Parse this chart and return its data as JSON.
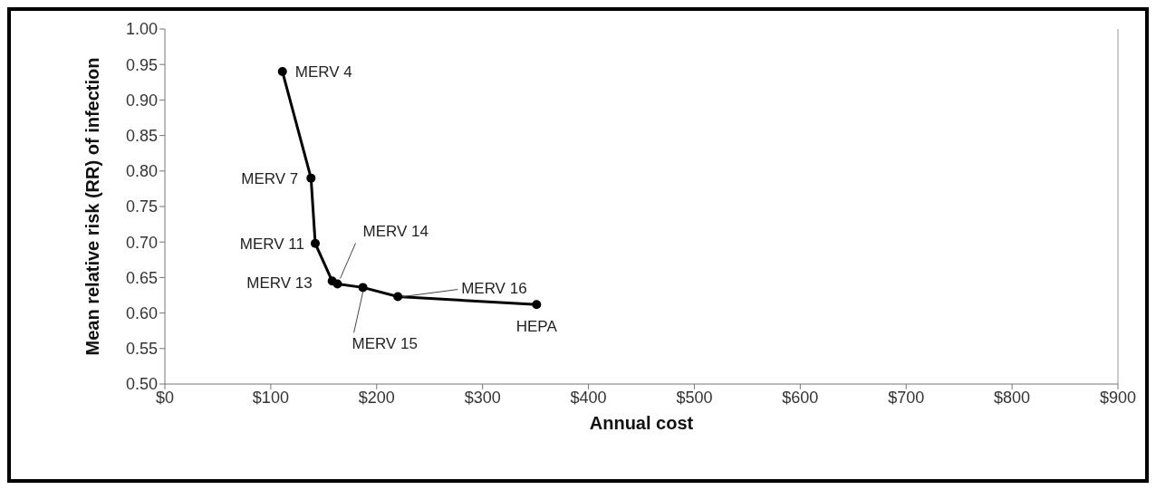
{
  "chart_data": {
    "type": "line",
    "xlabel": "Annual cost",
    "ylabel": "Mean relative risk (RR) of infection",
    "x": [
      111,
      138,
      142,
      158,
      163,
      187,
      220,
      351
    ],
    "series": [
      {
        "color": "#000000",
        "values": [
          0.94,
          0.79,
          0.698,
          0.645,
          0.641,
          0.636,
          0.623,
          0.612
        ]
      }
    ],
    "marker": "circle",
    "line_style": "solid",
    "grid": false,
    "legend": false,
    "xlim": [
      0,
      900
    ],
    "xticks": [
      {
        "value": 0,
        "label": "$0"
      },
      {
        "value": 100,
        "label": "$100"
      },
      {
        "value": 200,
        "label": "$200"
      },
      {
        "value": 300,
        "label": "$300"
      },
      {
        "value": 400,
        "label": "$400"
      },
      {
        "value": 500,
        "label": "$500"
      },
      {
        "value": 600,
        "label": "$600"
      },
      {
        "value": 700,
        "label": "$700"
      },
      {
        "value": 800,
        "label": "$800"
      },
      {
        "value": 900,
        "label": "$900"
      }
    ],
    "ylim": [
      0.5,
      1
    ],
    "yticks": [
      {
        "value": 0.5,
        "label": "0.50"
      },
      {
        "value": 0.55,
        "label": "0.55"
      },
      {
        "value": 0.6,
        "label": "0.60"
      },
      {
        "value": 0.65,
        "label": "0.65"
      },
      {
        "value": 0.7,
        "label": "0.70"
      },
      {
        "value": 0.75,
        "label": "0.75"
      },
      {
        "value": 0.8,
        "label": "0.80"
      },
      {
        "value": 0.85,
        "label": "0.85"
      },
      {
        "value": 0.9,
        "label": "0.90"
      },
      {
        "value": 0.95,
        "label": "0.95"
      },
      {
        "value": 1,
        "label": "1.00"
      }
    ],
    "annotations": [
      {
        "text": "MERV 4",
        "x": 111,
        "y": 0.94
      },
      {
        "text": "MERV 7",
        "x": 138,
        "y": 0.79
      },
      {
        "text": "MERV 11",
        "x": 142,
        "y": 0.698
      },
      {
        "text": "MERV 13",
        "x": 158,
        "y": 0.645
      },
      {
        "text": "MERV 14",
        "x": 163,
        "y": 0.641
      },
      {
        "text": "MERV 15",
        "x": 187,
        "y": 0.636
      },
      {
        "text": "MERV 16",
        "x": 220,
        "y": 0.623
      },
      {
        "text": "HEPA",
        "x": 351,
        "y": 0.612
      }
    ]
  }
}
